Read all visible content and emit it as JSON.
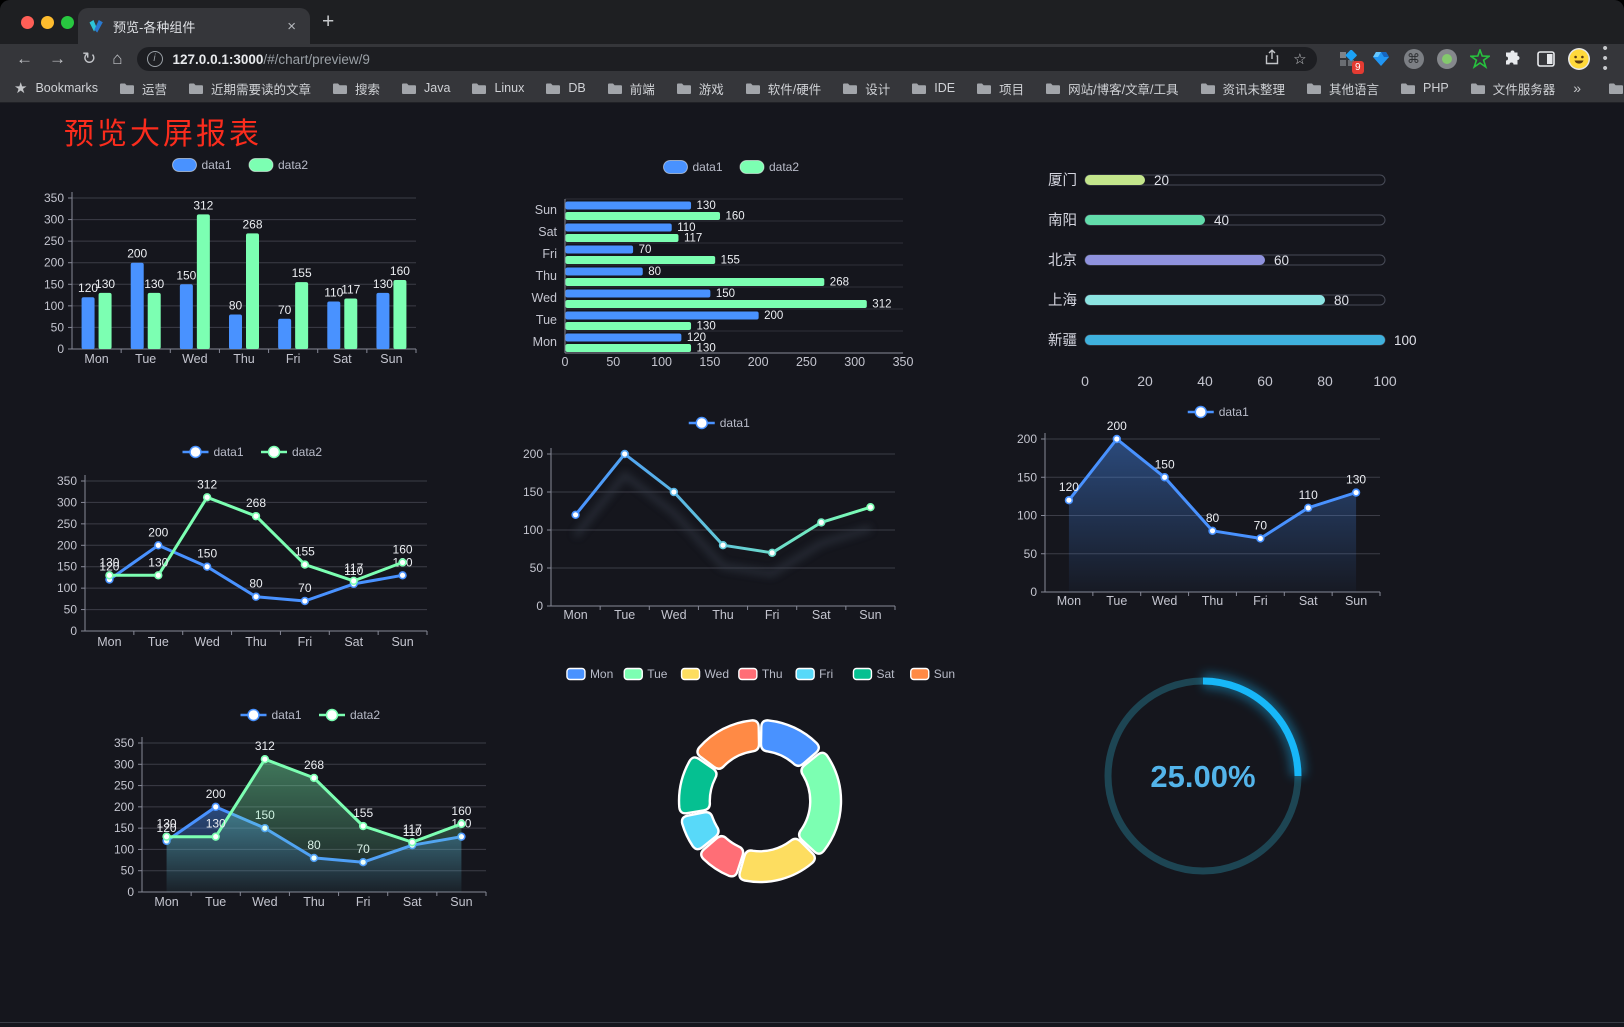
{
  "browser": {
    "tab": {
      "title": "预览-各种组件",
      "close_label": "×",
      "new_tab_label": "+"
    },
    "url": {
      "host": "127.0.0.1:3000",
      "path": "/#/chart/preview/9"
    },
    "toolbar": {
      "extension_badge": "9"
    },
    "bookmarks_label": "Bookmarks",
    "bookmarks": [
      "运营",
      "近期需要读的文章",
      "搜索",
      "Java",
      "Linux",
      "DB",
      "前端",
      "游戏",
      "软件/硬件",
      "设计",
      "IDE",
      "项目",
      "网站/博客/文章/工具",
      "资讯未整理",
      "其他语言",
      "PHP",
      "文件服务器"
    ],
    "overflow_chevron": "»",
    "other_bookmarks": "其他书签"
  },
  "page": {
    "title": "预览大屏报表",
    "title_color": "#fb2c1d",
    "background": "#15161d"
  },
  "chart_data": [
    {
      "id": "bar-grouped",
      "type": "bar",
      "categories": [
        "Mon",
        "Tue",
        "Wed",
        "Thu",
        "Fri",
        "Sat",
        "Sun"
      ],
      "series": [
        {
          "name": "data1",
          "color": "#4992ff",
          "values": [
            120,
            200,
            150,
            80,
            70,
            110,
            130
          ]
        },
        {
          "name": "data2",
          "color": "#7cffb2",
          "values": [
            130,
            130,
            312,
            268,
            155,
            117,
            160
          ]
        }
      ],
      "ylim": [
        0,
        350
      ],
      "ytick_step": 50,
      "grid": true,
      "legend_position": "top",
      "data_labels": true
    },
    {
      "id": "bar-horizontal",
      "type": "bar",
      "orientation": "horizontal",
      "categories": [
        "Mon",
        "Tue",
        "Wed",
        "Thu",
        "Fri",
        "Sat",
        "Sun"
      ],
      "series": [
        {
          "name": "data1",
          "color": "#4992ff",
          "values": [
            120,
            200,
            150,
            80,
            70,
            110,
            130
          ]
        },
        {
          "name": "data2",
          "color": "#7cffb2",
          "values": [
            130,
            130,
            312,
            268,
            155,
            117,
            160
          ]
        }
      ],
      "xlim": [
        0,
        350
      ],
      "xtick_step": 50,
      "legend_position": "top",
      "data_labels": true
    },
    {
      "id": "city-progress",
      "type": "bar",
      "variant": "progress",
      "items": [
        {
          "label": "厦门",
          "value": 20,
          "color": "#c3e58b"
        },
        {
          "label": "南阳",
          "value": 40,
          "color": "#62dcab"
        },
        {
          "label": "北京",
          "value": 60,
          "color": "#8f92de"
        },
        {
          "label": "上海",
          "value": 80,
          "color": "#8ce4e2"
        },
        {
          "label": "新疆",
          "value": 100,
          "color": "#3fb1dd"
        }
      ],
      "xlim": [
        0,
        100
      ],
      "xticks": [
        0,
        20,
        40,
        60,
        80,
        100
      ]
    },
    {
      "id": "line-two-series",
      "type": "line",
      "categories": [
        "Mon",
        "Tue",
        "Wed",
        "Thu",
        "Fri",
        "Sat",
        "Sun"
      ],
      "series": [
        {
          "name": "data1",
          "color": "#4992ff",
          "values": [
            120,
            200,
            150,
            80,
            70,
            110,
            130
          ]
        },
        {
          "name": "data2",
          "color": "#7cffb2",
          "values": [
            130,
            130,
            312,
            268,
            155,
            117,
            160
          ]
        }
      ],
      "ylim": [
        0,
        350
      ],
      "ytick_step": 50,
      "legend_position": "top",
      "data_labels": true
    },
    {
      "id": "line-gradient",
      "type": "line",
      "categories": [
        "Mon",
        "Tue",
        "Wed",
        "Thu",
        "Fri",
        "Sat",
        "Sun"
      ],
      "series": [
        {
          "name": "data1",
          "gradient": [
            "#4992ff",
            "#7cffb2"
          ],
          "values": [
            120,
            200,
            150,
            80,
            70,
            110,
            130
          ],
          "shadow": true
        }
      ],
      "ylim": [
        0,
        200
      ],
      "ytick_step": 50,
      "legend_position": "top",
      "data_labels": false
    },
    {
      "id": "line-area-blue",
      "type": "area",
      "categories": [
        "Mon",
        "Tue",
        "Wed",
        "Thu",
        "Fri",
        "Sat",
        "Sun"
      ],
      "series": [
        {
          "name": "data1",
          "color": "#4992ff",
          "values": [
            120,
            200,
            150,
            80,
            70,
            110,
            130
          ],
          "area": true
        }
      ],
      "ylim": [
        0,
        200
      ],
      "ytick_step": 50,
      "legend_position": "top",
      "data_labels": true
    },
    {
      "id": "line-area-two",
      "type": "area",
      "categories": [
        "Mon",
        "Tue",
        "Wed",
        "Thu",
        "Fri",
        "Sat",
        "Sun"
      ],
      "series": [
        {
          "name": "data1",
          "color": "#4992ff",
          "values": [
            120,
            200,
            150,
            80,
            70,
            110,
            130
          ],
          "area": true
        },
        {
          "name": "data2",
          "color": "#7cffb2",
          "values": [
            130,
            130,
            312,
            268,
            155,
            117,
            160
          ],
          "area": true
        }
      ],
      "ylim": [
        0,
        350
      ],
      "ytick_step": 50,
      "legend_position": "top",
      "data_labels": true
    },
    {
      "id": "donut",
      "type": "pie",
      "categories": [
        "Mon",
        "Tue",
        "Wed",
        "Thu",
        "Fri",
        "Sat",
        "Sun"
      ],
      "values": [
        120,
        200,
        150,
        80,
        70,
        110,
        130
      ],
      "colors": [
        "#4992ff",
        "#7cffb2",
        "#fddd60",
        "#ff6e76",
        "#58d9f9",
        "#05c091",
        "#ff8a45"
      ],
      "legend_position": "top",
      "inner_radius_ratio": 0.62
    },
    {
      "id": "gauge",
      "type": "gauge",
      "value": 25,
      "display": "25.00%",
      "arc_color": "#17b7f8",
      "ring_color": "#1d4553",
      "text_color": "#53b4ea"
    }
  ],
  "theme": {
    "axis_label": "#c4c5cf",
    "axis_line": "#868997",
    "grid_line": "#3c3d47",
    "data_label": "#eceef2",
    "legend_text": "#b9bcc9",
    "white": "#ffffff"
  }
}
